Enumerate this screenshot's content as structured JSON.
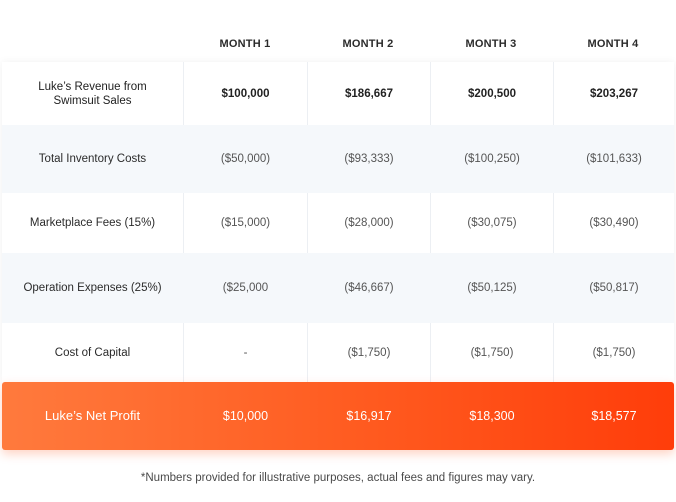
{
  "columns": [
    "MONTH 1",
    "MONTH 2",
    "MONTH 3",
    "MONTH 4"
  ],
  "rows": [
    {
      "label": "Luke’s Revenue from Swimsuit Sales",
      "values": [
        "$100,000",
        "$186,667",
        "$200,500",
        "$203,267"
      ]
    },
    {
      "label": "Total Inventory Costs",
      "values": [
        "($50,000)",
        "($93,333)",
        "($100,250)",
        "($101,633)"
      ]
    },
    {
      "label": "Marketplace Fees (15%)",
      "values": [
        "($15,000)",
        "($28,000)",
        "($30,075)",
        "($30,490)"
      ]
    },
    {
      "label": "Operation Expenses (25%)",
      "values": [
        "($25,000",
        "($46,667)",
        "($50,125)",
        "($50,817)"
      ]
    },
    {
      "label": "Cost of Capital",
      "values": [
        "-",
        "($1,750)",
        "($1,750)",
        "($1,750)"
      ]
    }
  ],
  "net_profit": {
    "label": "Luke’s Net Profit",
    "values": [
      "$10,000",
      "$16,917",
      "$18,300",
      "$18,577"
    ]
  },
  "footnote": "*Numbers provided for illustrative purposes, actual fees and figures may vary.",
  "colors": {
    "accent_start": "#ff7a3d",
    "accent_end": "#ff3d0a",
    "alt_row": "#f5f8fb"
  }
}
